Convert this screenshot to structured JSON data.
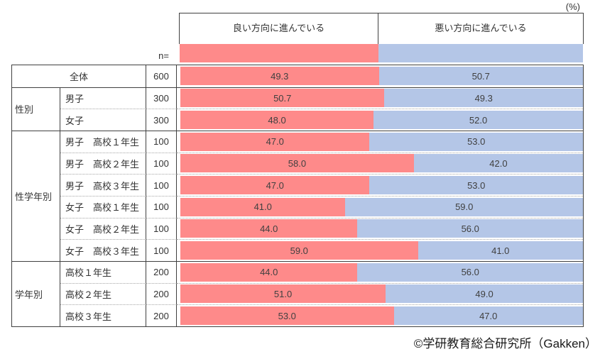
{
  "unit_label": "(%)",
  "n_label": "n=",
  "footer": "©学研教育総合研究所（Gakken）",
  "colors": {
    "positive": "#fe8a8a",
    "negative": "#b4c6e7",
    "border": "#404040",
    "separator": "#a6a6a6",
    "value_text": "#404040"
  },
  "chart_data": {
    "type": "bar",
    "orientation": "horizontal",
    "stacked": true,
    "unit": "%",
    "value_range": [
      0,
      100
    ],
    "grid": false,
    "legend_position": "column-headers-top",
    "series_names": [
      "良い方向に進んでいる",
      "悪い方向に進んでいる"
    ],
    "overall_split": [
      49.3,
      50.7
    ],
    "rows": [
      {
        "group": "",
        "label": "全体",
        "n": 600,
        "values": [
          49.3,
          50.7
        ]
      },
      {
        "group": "性別",
        "label": "男子",
        "n": 300,
        "values": [
          50.7,
          49.3
        ]
      },
      {
        "group": "性別",
        "label": "女子",
        "n": 300,
        "values": [
          48.0,
          52.0
        ]
      },
      {
        "group": "性学年別",
        "label": "男子　高校１年生",
        "n": 100,
        "values": [
          47.0,
          53.0
        ]
      },
      {
        "group": "性学年別",
        "label": "男子　高校２年生",
        "n": 100,
        "values": [
          58.0,
          42.0
        ]
      },
      {
        "group": "性学年別",
        "label": "男子　高校３年生",
        "n": 100,
        "values": [
          47.0,
          53.0
        ]
      },
      {
        "group": "性学年別",
        "label": "女子　高校１年生",
        "n": 100,
        "values": [
          41.0,
          59.0
        ]
      },
      {
        "group": "性学年別",
        "label": "女子　高校２年生",
        "n": 100,
        "values": [
          44.0,
          56.0
        ]
      },
      {
        "group": "性学年別",
        "label": "女子　高校３年生",
        "n": 100,
        "values": [
          59.0,
          41.0
        ]
      },
      {
        "group": "学年別",
        "label": "高校１年生",
        "n": 200,
        "values": [
          44.0,
          56.0
        ]
      },
      {
        "group": "学年別",
        "label": "高校２年生",
        "n": 200,
        "values": [
          51.0,
          49.0
        ]
      },
      {
        "group": "学年別",
        "label": "高校３年生",
        "n": 200,
        "values": [
          53.0,
          47.0
        ]
      }
    ]
  }
}
